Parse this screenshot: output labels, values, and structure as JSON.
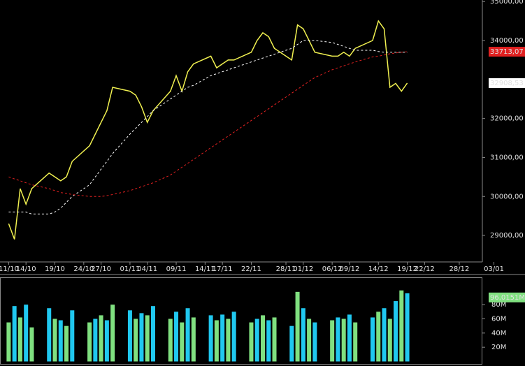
{
  "chart_data": [
    {
      "type": "line",
      "x": [
        0,
        1,
        2,
        3,
        4,
        7,
        8,
        9,
        10,
        11,
        14,
        15,
        16,
        17,
        18,
        21,
        22,
        23,
        24,
        25,
        28,
        29,
        30,
        31,
        32,
        35,
        36,
        37,
        38,
        39,
        42,
        43,
        44,
        45,
        46,
        49,
        50,
        51,
        52,
        53,
        56,
        57,
        58,
        59,
        60,
        63,
        64,
        65,
        66,
        67,
        68,
        69
      ],
      "series": [
        {
          "name": "price",
          "color": "#f0f050",
          "dash": false,
          "values": [
            29300,
            28900,
            30200,
            29800,
            30200,
            30600,
            30500,
            30400,
            30500,
            30900,
            31300,
            31600,
            31900,
            32200,
            32800,
            32700,
            32600,
            32300,
            31900,
            32200,
            32700,
            33100,
            32700,
            33200,
            33400,
            33600,
            33300,
            33400,
            33500,
            33500,
            33700,
            34000,
            34200,
            34100,
            33800,
            33500,
            34400,
            34300,
            34000,
            33700,
            33600,
            33600,
            33700,
            33600,
            33800,
            34000,
            34500,
            34300,
            32800,
            32900,
            32700,
            32908.53
          ],
          "last_value_label": "32908,53",
          "label_color": "#ffffff"
        },
        {
          "name": "ma-short",
          "color": "#ffffff",
          "dash": true,
          "values": [
            29600,
            29600,
            29600,
            29600,
            29550,
            29550,
            29600,
            29700,
            29850,
            30000,
            30300,
            30500,
            30700,
            30900,
            31100,
            31600,
            31750,
            31900,
            32050,
            32200,
            32500,
            32600,
            32700,
            32800,
            32850,
            33100,
            33150,
            33200,
            33250,
            33300,
            33450,
            33500,
            33550,
            33600,
            33650,
            33800,
            33900,
            34000,
            34000,
            34000,
            33950,
            33900,
            33850,
            33800,
            33750,
            33750,
            33720,
            33700,
            33700,
            33700,
            33700,
            33700
          ],
          "last_value_label": null
        },
        {
          "name": "ma-long",
          "color": "#e02020",
          "dash": true,
          "values": [
            30500,
            30450,
            30400,
            30350,
            30300,
            30200,
            30150,
            30100,
            30080,
            30050,
            30000,
            30000,
            30000,
            30020,
            30050,
            30150,
            30200,
            30250,
            30300,
            30350,
            30550,
            30650,
            30750,
            30850,
            30950,
            31250,
            31350,
            31450,
            31550,
            31650,
            31950,
            32050,
            32150,
            32250,
            32350,
            32650,
            32750,
            32850,
            32950,
            33050,
            33250,
            33300,
            33350,
            33400,
            33450,
            33580,
            33600,
            33630,
            33660,
            33680,
            33700,
            33713.07
          ],
          "last_value_label": "33713,07",
          "label_color": "#e02020"
        }
      ],
      "xlim": [
        -1.5,
        82
      ],
      "xticks": [
        {
          "value": 0,
          "label": "11/10"
        },
        {
          "value": 3,
          "label": "14/10"
        },
        {
          "value": 8,
          "label": "19/10"
        },
        {
          "value": 13,
          "label": "24/10"
        },
        {
          "value": 16,
          "label": "27/10"
        },
        {
          "value": 21,
          "label": "01/11"
        },
        {
          "value": 24,
          "label": "04/11"
        },
        {
          "value": 29,
          "label": "09/11"
        },
        {
          "value": 34,
          "label": "14/11"
        },
        {
          "value": 37,
          "label": "17/11"
        },
        {
          "value": 42,
          "label": "22/11"
        },
        {
          "value": 48,
          "label": "28/11"
        },
        {
          "value": 51,
          "label": "01/12"
        },
        {
          "value": 56,
          "label": "06/12"
        },
        {
          "value": 59,
          "label": "09/12"
        },
        {
          "value": 64,
          "label": "14/12"
        },
        {
          "value": 69,
          "label": "19/12"
        },
        {
          "value": 72,
          "label": "22/12"
        },
        {
          "value": 78,
          "label": "28/12"
        },
        {
          "value": 84,
          "label": "03/01"
        }
      ],
      "ylim": [
        28320,
        35040
      ],
      "yticks": [
        {
          "value": 29000,
          "label": "29000,00"
        },
        {
          "value": 30000,
          "label": "30000,00"
        },
        {
          "value": 31000,
          "label": "31000,00"
        },
        {
          "value": 32000,
          "label": "32000,00"
        },
        {
          "value": 34000,
          "label": "34000,00"
        },
        {
          "value": 35000,
          "label": "35000,00"
        }
      ]
    },
    {
      "type": "bar",
      "x": [
        0,
        1,
        2,
        3,
        4,
        7,
        8,
        9,
        10,
        11,
        14,
        15,
        16,
        17,
        18,
        21,
        22,
        23,
        24,
        25,
        28,
        29,
        30,
        31,
        32,
        35,
        36,
        37,
        38,
        39,
        42,
        43,
        44,
        45,
        46,
        49,
        50,
        51,
        52,
        53,
        56,
        57,
        58,
        59,
        60,
        63,
        64,
        65,
        66,
        67,
        68,
        69
      ],
      "values": [
        55,
        78,
        62,
        80,
        48,
        75,
        60,
        58,
        50,
        72,
        55,
        60,
        65,
        58,
        80,
        72,
        60,
        68,
        65,
        78,
        60,
        70,
        55,
        75,
        62,
        65,
        58,
        66,
        60,
        70,
        55,
        60,
        65,
        58,
        62,
        50,
        98,
        75,
        60,
        55,
        58,
        62,
        60,
        66,
        55,
        62,
        70,
        75,
        60,
        85,
        100,
        96.0151
      ],
      "last_value_label": "96,0151M",
      "colors": [
        "#80e080",
        "#20c8f0"
      ],
      "xlim": [
        -1.5,
        82
      ],
      "ylim": [
        0,
        118.5
      ],
      "yticks": [
        {
          "value": 20,
          "label": "20M"
        },
        {
          "value": 40,
          "label": "40M"
        },
        {
          "value": 60,
          "label": "60M"
        },
        {
          "value": 80,
          "label": "80M"
        }
      ]
    }
  ]
}
